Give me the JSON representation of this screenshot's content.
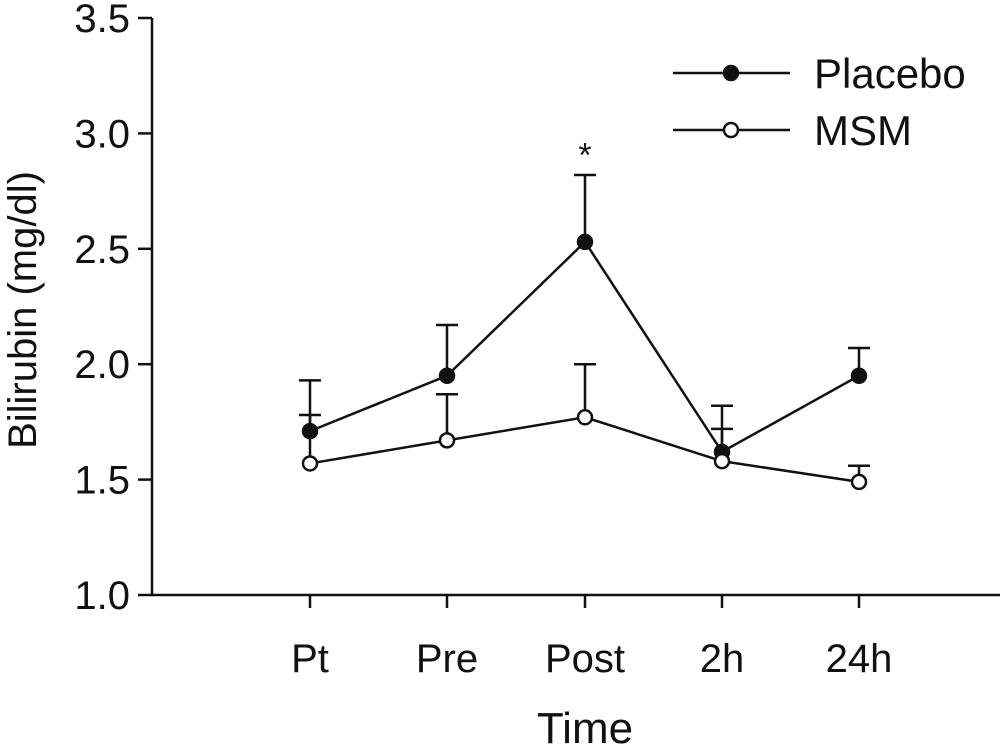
{
  "chart_data": {
    "type": "line",
    "title": "",
    "xlabel": "Time",
    "ylabel": "Bilirubin (mg/dl)",
    "categories": [
      "Pt",
      "Pre",
      "Post",
      "2h",
      "24h"
    ],
    "ylim": [
      1.0,
      3.5
    ],
    "yticks": [
      "1.0",
      "1.5",
      "2.0",
      "2.5",
      "3.0",
      "3.5"
    ],
    "grid": false,
    "legend_position": "top-right",
    "series": [
      {
        "name": "Placebo",
        "marker": "filled",
        "values": [
          1.71,
          1.95,
          2.53,
          1.62,
          1.95
        ],
        "error": [
          0.22,
          0.22,
          0.29,
          0.2,
          0.12
        ]
      },
      {
        "name": "MSM",
        "marker": "open",
        "values": [
          1.57,
          1.67,
          1.77,
          1.58,
          1.49
        ],
        "error": [
          0.21,
          0.2,
          0.23,
          0.14,
          0.07
        ]
      }
    ],
    "annotations": [
      {
        "text": "*",
        "category": "Post",
        "y": 2.97
      }
    ]
  }
}
